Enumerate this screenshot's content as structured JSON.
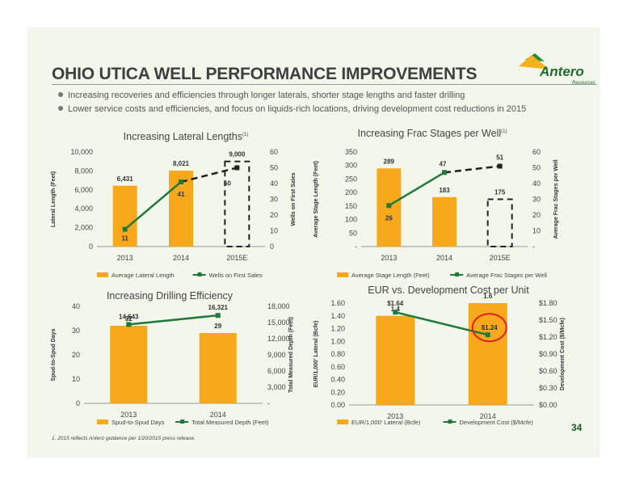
{
  "slide": {
    "title": "OHIO UTICA WELL PERFORMANCE IMPROVEMENTS",
    "bullets": [
      "Increasing recoveries and efficiencies through longer laterals, shorter stage lengths and faster drilling",
      "Lower service costs and efficiencies, and focus on liquids-rich locations, driving development cost reductions in 2015"
    ],
    "logo": {
      "text": "Antero",
      "subtext": "Resources"
    },
    "footnote": "1.  2015 reflects Antero guidance per 1/20/2015 press release.",
    "page_number": "34"
  },
  "colors": {
    "bar": "#f7a81b",
    "line": "#1f7a3a",
    "text": "#444444",
    "highlight": "#e02020"
  },
  "chart_data": [
    {
      "type": "bar",
      "title": "Increasing Lateral Lengths",
      "title_superscript": "(1)",
      "categories": [
        "2013",
        "2014",
        "2015E"
      ],
      "series": [
        {
          "name": "Average Lateral Length",
          "axis": "left",
          "values": [
            6431,
            8021,
            9000
          ],
          "labels": [
            "6,431",
            "8,021",
            "9,000"
          ],
          "dashed_outline": [
            false,
            false,
            true
          ]
        },
        {
          "name": "Wells on First Sales",
          "axis": "right",
          "type": "line",
          "values": [
            11,
            41,
            50
          ],
          "labels": [
            "11",
            "41",
            "50"
          ],
          "dashed_last_segment": true
        }
      ],
      "ylabel": "Lateral Length (Feet)",
      "y2label": "Wells on First Sales",
      "ylim": [
        0,
        10000
      ],
      "y2lim": [
        0,
        60
      ],
      "yticks": [
        "0",
        "2,000",
        "4,000",
        "6,000",
        "8,000",
        "10,000"
      ],
      "y2ticks": [
        "0",
        "10",
        "20",
        "30",
        "40",
        "50",
        "60"
      ],
      "legend": "bottom"
    },
    {
      "type": "bar",
      "title": "Increasing Frac Stages per Well",
      "title_superscript": "(1)",
      "categories": [
        "2013",
        "2014",
        "2015E"
      ],
      "series": [
        {
          "name": "Average Stage Length (Feet)",
          "axis": "left",
          "values": [
            289,
            183,
            175
          ],
          "labels": [
            "289",
            "183",
            "175"
          ],
          "dashed_outline": [
            false,
            false,
            true
          ]
        },
        {
          "name": "Average Frac Stages per Well",
          "axis": "right",
          "type": "line",
          "values": [
            26,
            47,
            51
          ],
          "labels": [
            "26",
            "47",
            "51"
          ],
          "dashed_last_segment": true
        }
      ],
      "ylabel": "Average Stage Length (Feet)",
      "y2label": "Average Frac Stages per Well",
      "ylim": [
        0,
        350
      ],
      "y2lim": [
        0,
        60
      ],
      "yticks": [
        "-",
        "50",
        "100",
        "150",
        "200",
        "250",
        "300",
        "350"
      ],
      "y2ticks": [
        "-",
        "10",
        "20",
        "30",
        "40",
        "50",
        "60"
      ],
      "legend": "bottom"
    },
    {
      "type": "bar",
      "title": "Increasing Drilling Efficiency",
      "title_superscript": "",
      "categories": [
        "2013",
        "2014"
      ],
      "series": [
        {
          "name": "Spud-to-Spud Days",
          "axis": "left",
          "values": [
            32,
            29
          ],
          "labels": [
            "32",
            "29"
          ],
          "dashed_outline": [
            false,
            false
          ]
        },
        {
          "name": "Total Measured Depth (Feet)",
          "axis": "right",
          "type": "line",
          "values": [
            14643,
            16321
          ],
          "labels": [
            "14,643",
            "16,321"
          ],
          "dashed_last_segment": false
        }
      ],
      "ylabel": "Spud-to-Spud Days",
      "y2label": "Total Measured Depth (Feet)",
      "ylim": [
        0,
        40
      ],
      "y2lim": [
        0,
        18000
      ],
      "yticks": [
        "0",
        "10",
        "20",
        "30",
        "40"
      ],
      "y2ticks": [
        "-",
        "3,000",
        "6,000",
        "9,000",
        "12,000",
        "15,000",
        "18,000"
      ],
      "legend": "bottom"
    },
    {
      "type": "bar",
      "title": "EUR vs. Development Cost per Unit",
      "title_superscript": "",
      "categories": [
        "2013",
        "2014"
      ],
      "series": [
        {
          "name": "EUR/1,000' Lateral (Bcfe)",
          "axis": "left",
          "values": [
            1.4,
            1.6
          ],
          "labels": [
            "1.4",
            "1.6"
          ],
          "dashed_outline": [
            false,
            false
          ]
        },
        {
          "name": "Development Cost ($/Mcfe)",
          "axis": "right",
          "type": "line",
          "values": [
            1.64,
            1.24
          ],
          "labels": [
            "$1.64",
            "$1.24"
          ],
          "dashed_last_segment": false
        }
      ],
      "ylabel": "EUR/1,000' Lateral (Bcfe)",
      "y2label": "Development Cost ($/Mcfe)",
      "ylim": [
        0,
        1.6
      ],
      "y2lim": [
        0,
        1.8
      ],
      "yticks": [
        "0.00",
        "0.20",
        "0.40",
        "0.60",
        "0.80",
        "1.00",
        "1.20",
        "1.40",
        "1.60"
      ],
      "y2ticks": [
        "$0.00",
        "$0.30",
        "$0.60",
        "$0.90",
        "$1.20",
        "$1.50",
        "$1.80"
      ],
      "highlight_circle_on": "$1.24",
      "legend": "bottom"
    }
  ]
}
